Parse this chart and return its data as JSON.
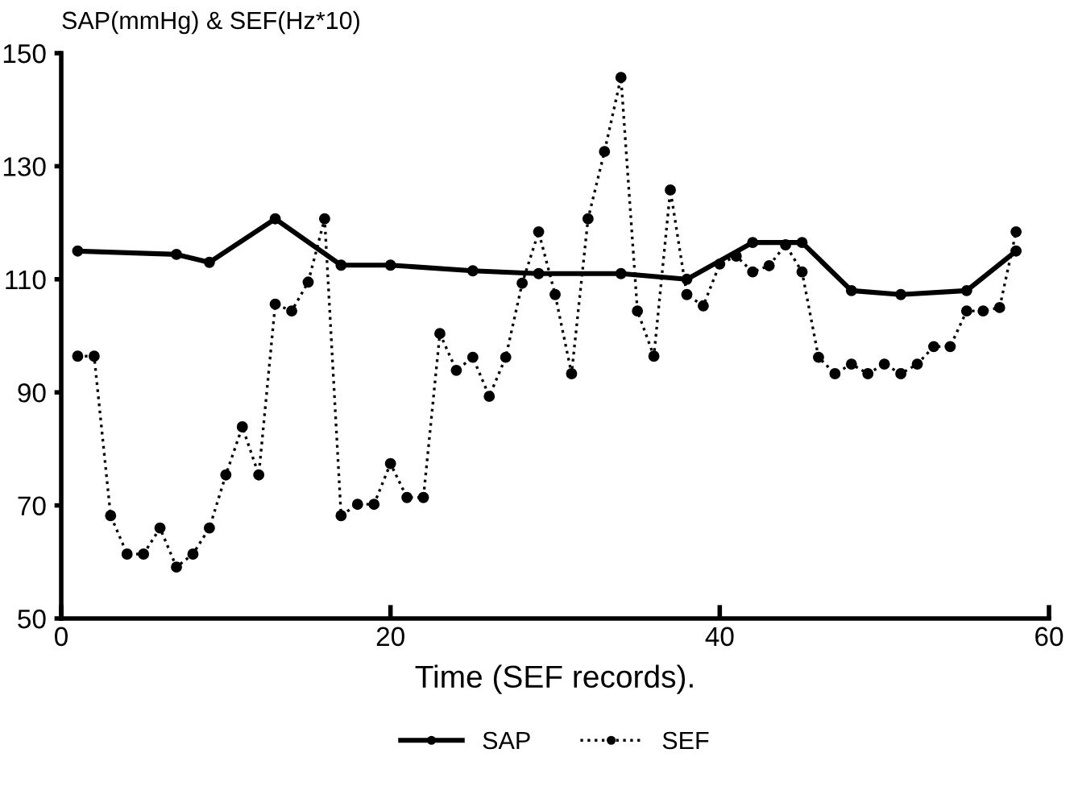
{
  "chart_data": {
    "type": "line",
    "ylabel": "SAP(mmHg) & SEF(Hz*10)",
    "xlabel": "Time (SEF records).",
    "series": [
      {
        "name": "SAP",
        "color": "#000000",
        "line_style": "solid",
        "marker": "circle",
        "x": [
          1,
          7,
          9,
          13,
          17,
          20,
          25,
          29,
          34,
          38,
          42,
          45,
          48,
          51,
          55,
          58
        ],
        "values": [
          115,
          114.4,
          113,
          120.7,
          112.5,
          112.5,
          111.5,
          111,
          111,
          110,
          116.5,
          116.5,
          108,
          107.3,
          108,
          115
        ]
      },
      {
        "name": "SEF",
        "color": "#000000",
        "line_style": "dotted",
        "marker": "circle",
        "x": [
          1,
          2,
          3,
          4,
          5,
          6,
          7,
          8,
          9,
          10,
          11,
          12,
          13,
          14,
          15,
          16,
          17,
          18,
          19,
          20,
          21,
          22,
          23,
          24,
          25,
          26,
          27,
          28,
          29,
          30,
          31,
          32,
          33,
          34,
          35,
          36,
          37,
          38,
          39,
          40,
          41,
          42,
          43,
          44,
          45,
          46,
          47,
          48,
          49,
          50,
          51,
          52,
          53,
          54,
          55,
          56,
          57,
          58
        ],
        "values": [
          96.4,
          96.4,
          68.2,
          61.4,
          61.4,
          66,
          59.1,
          61.4,
          66,
          75.4,
          83.9,
          75.4,
          105.6,
          104.4,
          109.5,
          120.7,
          68.2,
          70.2,
          70.2,
          77.4,
          71.4,
          71.4,
          100.4,
          93.9,
          96.2,
          89.3,
          96.2,
          109.3,
          118.4,
          107.3,
          93.3,
          120.7,
          132.6,
          145.7,
          104.4,
          96.4,
          125.8,
          107.3,
          105.3,
          112.7,
          114.1,
          111.3,
          112.4,
          116.1,
          111.3,
          96.2,
          93.3,
          95,
          93.3,
          95,
          93.3,
          95,
          98.1,
          98.1,
          104.4,
          104.4,
          105,
          118.4
        ]
      }
    ],
    "xlim": [
      0,
      60
    ],
    "xticks": [
      0,
      20,
      40,
      60
    ],
    "ylim": [
      50,
      150
    ],
    "yticks": [
      50,
      70,
      90,
      110,
      130,
      150
    ],
    "grid": false,
    "legend": "bottom"
  }
}
